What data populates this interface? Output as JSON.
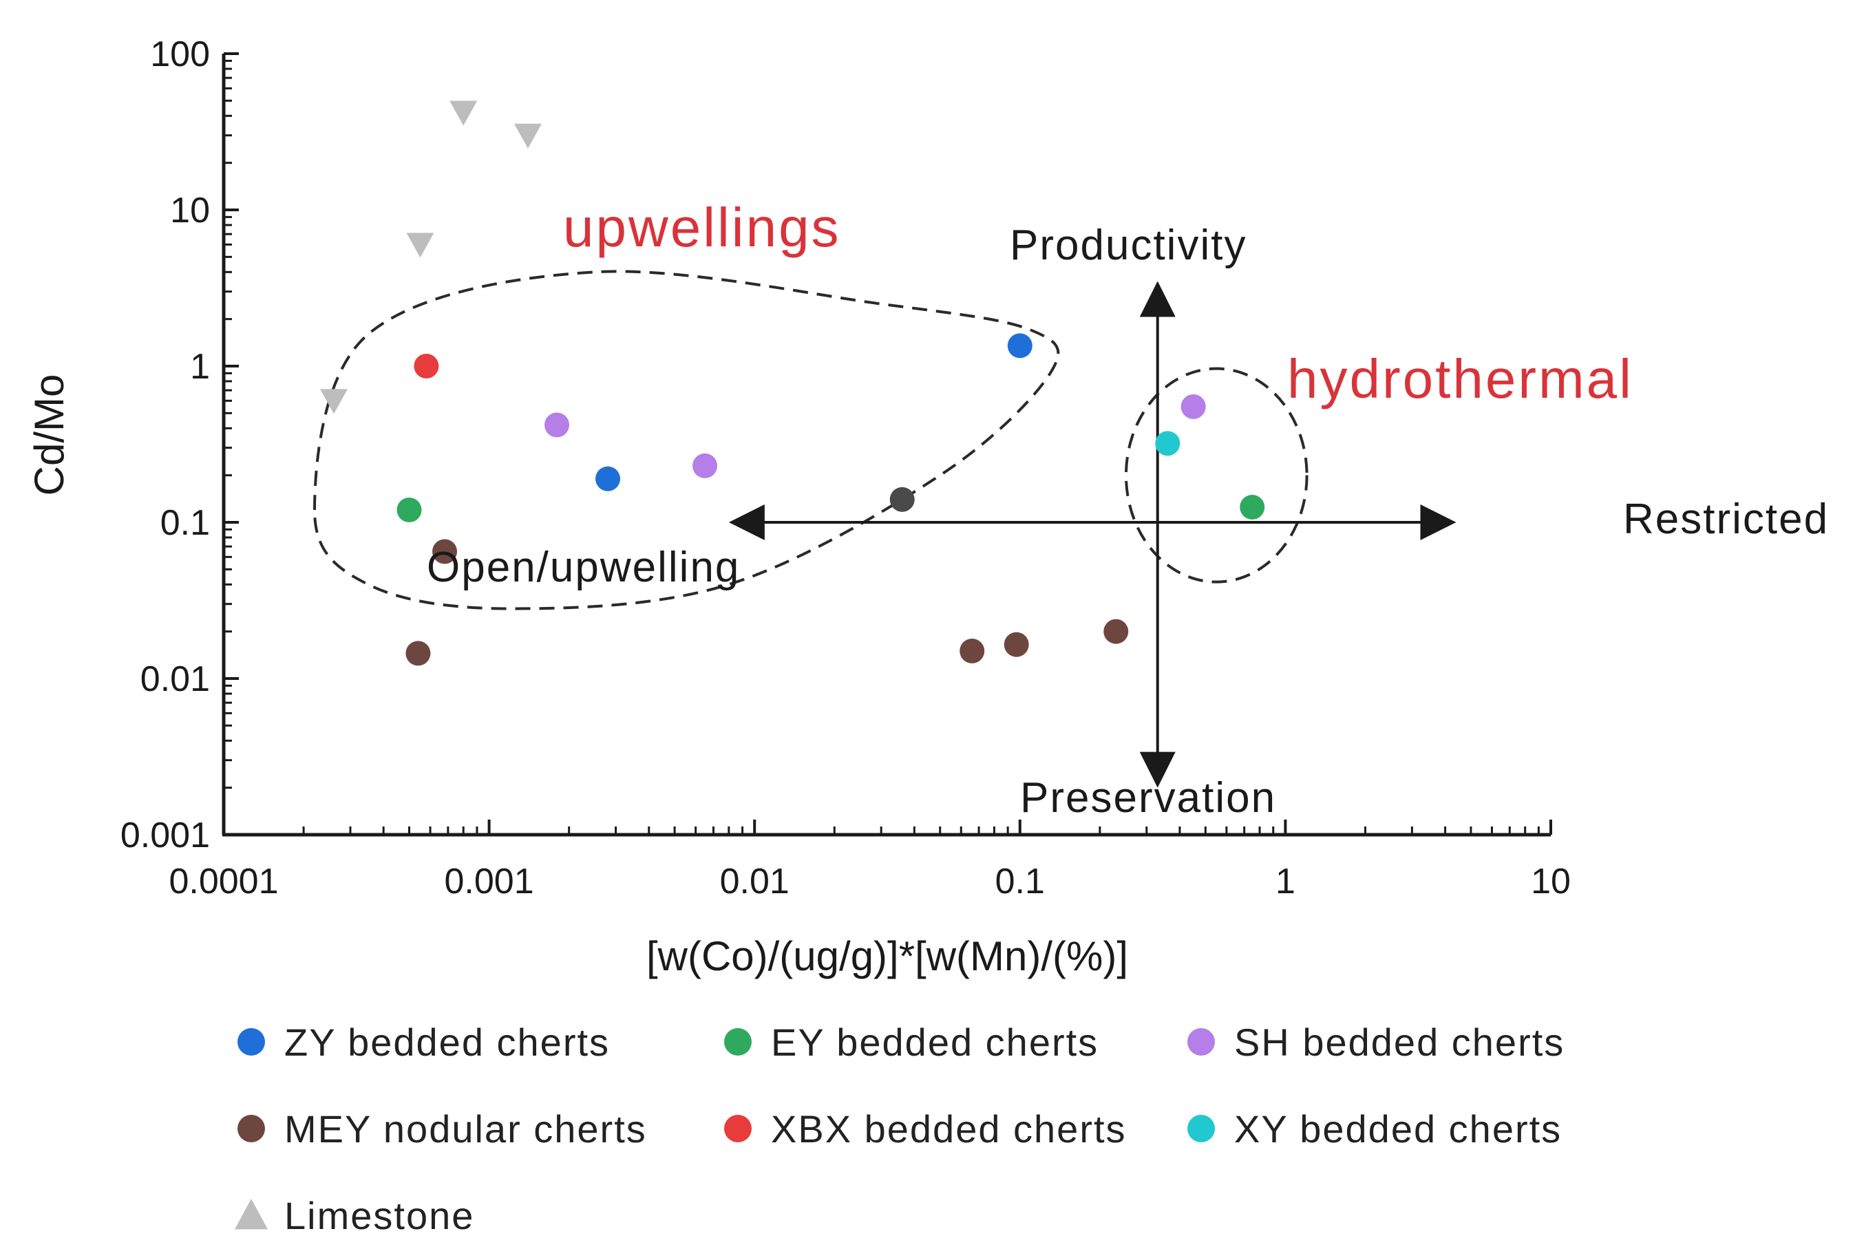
{
  "chart_data": {
    "type": "scatter",
    "xscale": "log",
    "yscale": "log",
    "xlabel": "[w(Co)/(ug/g)]*[w(Mn)/(%)]",
    "ylabel": "Cd/Mo",
    "xlim": [
      0.0001,
      10
    ],
    "ylim": [
      0.001,
      100
    ],
    "x_ticks": [
      "0.0001",
      "0.001",
      "0.01",
      "0.1",
      "1",
      "10"
    ],
    "y_ticks": [
      "0.001",
      "0.01",
      "0.1",
      "1",
      "10",
      "100"
    ],
    "series": [
      {
        "name": "ZY bedded cherts",
        "color": "#1f6fd8",
        "marker": "circle",
        "points": [
          {
            "x": 0.0028,
            "y": 0.19
          },
          {
            "x": 0.1,
            "y": 1.35
          }
        ]
      },
      {
        "name": "EY bedded cherts",
        "color": "#2eaa5e",
        "marker": "circle",
        "points": [
          {
            "x": 0.0005,
            "y": 0.12
          },
          {
            "x": 0.75,
            "y": 0.125
          }
        ]
      },
      {
        "name": "SH bedded cherts",
        "color": "#b57ee8",
        "marker": "circle",
        "points": [
          {
            "x": 0.0018,
            "y": 0.42
          },
          {
            "x": 0.0065,
            "y": 0.23
          },
          {
            "x": 0.45,
            "y": 0.55
          }
        ]
      },
      {
        "name": "MEY nodular cherts",
        "color": "#6e4640",
        "marker": "circle",
        "points": [
          {
            "x": 0.00068,
            "y": 0.065
          },
          {
            "x": 0.00054,
            "y": 0.0145
          },
          {
            "x": 0.066,
            "y": 0.015
          },
          {
            "x": 0.097,
            "y": 0.0165
          },
          {
            "x": 0.23,
            "y": 0.02
          }
        ]
      },
      {
        "name": "XBX bedded cherts",
        "color": "#e83c3c",
        "marker": "circle",
        "points": [
          {
            "x": 0.00058,
            "y": 1.0
          }
        ]
      },
      {
        "name": "XY bedded cherts",
        "color": "#22c8cf",
        "marker": "circle",
        "points": [
          {
            "x": 0.36,
            "y": 0.32
          }
        ]
      },
      {
        "name": "Limestone",
        "color": "#bdbdbd",
        "marker": "triangle-down",
        "points": [
          {
            "x": 0.00026,
            "y": 0.6
          },
          {
            "x": 0.00055,
            "y": 6.0
          },
          {
            "x": 0.0008,
            "y": 42
          },
          {
            "x": 0.0014,
            "y": 30
          }
        ]
      },
      {
        "name": "",
        "color": "#4a4a4a",
        "marker": "circle",
        "in_legend": false,
        "points": [
          {
            "x": 0.036,
            "y": 0.14
          }
        ]
      }
    ],
    "annotations": {
      "upwellings": "upwellings",
      "hydrothermal": "hydrothermal",
      "productivity": "Productivity",
      "preservation": "Preservation",
      "restricted": "Restricted",
      "open_upwelling": "Open/upwelling"
    },
    "arrows": {
      "vertical_x": 0.33,
      "vertical_y_range": [
        0.002,
        3.5
      ],
      "horizontal_y": 0.1,
      "horizontal_x_range": [
        0.008,
        4.4
      ]
    },
    "regions": {
      "hydrothermal_circle": {
        "center": {
          "x": 0.55,
          "y": 0.2
        },
        "x_range": [
          0.25,
          1.2
        ]
      },
      "upwellings_outline": [
        {
          "x": 0.00022,
          "y": 0.12
        },
        {
          "x": 0.00035,
          "y": 1.6
        },
        {
          "x": 0.0025,
          "y": 4.0
        },
        {
          "x": 0.03,
          "y": 2.5
        },
        {
          "x": 0.11,
          "y": 1.7
        },
        {
          "x": 0.13,
          "y": 0.9
        },
        {
          "x": 0.05,
          "y": 0.2
        },
        {
          "x": 0.008,
          "y": 0.04
        },
        {
          "x": 0.0012,
          "y": 0.028
        },
        {
          "x": 0.00035,
          "y": 0.04
        }
      ]
    },
    "legend": {
      "position": "bottom",
      "columns": 3
    }
  }
}
